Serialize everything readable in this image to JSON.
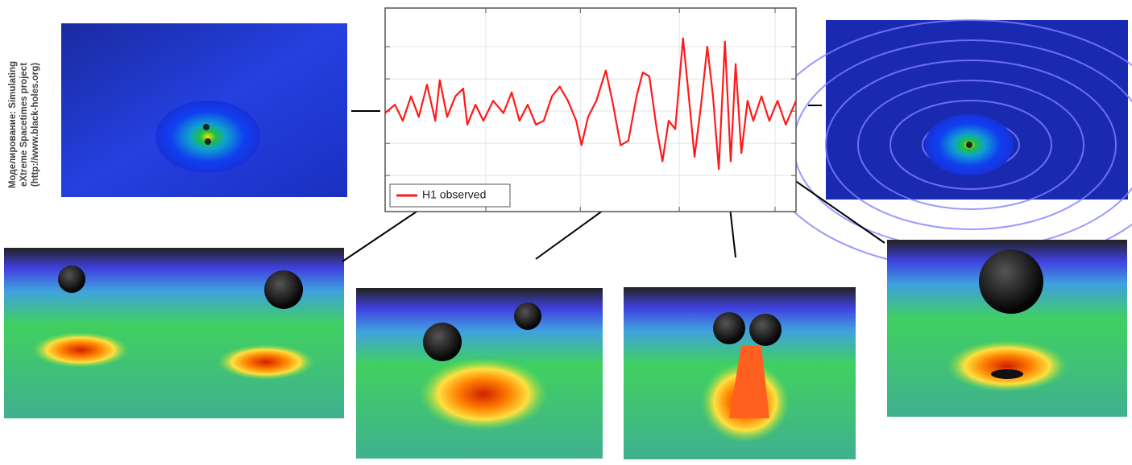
{
  "credit": [
    "Моделирование: Simulating",
    "eXtreme Spacetimes project",
    "(http://www.black-holes.org)"
  ],
  "chart_data": {
    "type": "line",
    "x": [
      0,
      0.024,
      0.043,
      0.063,
      0.082,
      0.102,
      0.122,
      0.133,
      0.151,
      0.171,
      0.19,
      0.2,
      0.22,
      0.239,
      0.263,
      0.288,
      0.308,
      0.327,
      0.347,
      0.367,
      0.386,
      0.406,
      0.425,
      0.445,
      0.465,
      0.478,
      0.494,
      0.514,
      0.537,
      0.553,
      0.573,
      0.592,
      0.612,
      0.627,
      0.643,
      0.661,
      0.675,
      0.69,
      0.706,
      0.725,
      0.739,
      0.753,
      0.769,
      0.784,
      0.798,
      0.812,
      0.827,
      0.841,
      0.853,
      0.867,
      0.882,
      0.896,
      0.916,
      0.935,
      0.955,
      0.975,
      1
    ],
    "series": [
      {
        "name": "H1 observed",
        "color": "#ff1a1a",
        "values": [
          -0.03,
          0.1,
          -0.15,
          0.23,
          -0.09,
          0.41,
          -0.15,
          0.48,
          -0.09,
          0.23,
          0.35,
          -0.21,
          0.1,
          -0.15,
          0.16,
          -0.03,
          0.29,
          -0.15,
          0.1,
          -0.21,
          -0.15,
          0.23,
          0.38,
          0.16,
          -0.15,
          -0.53,
          -0.09,
          0.16,
          0.63,
          0.16,
          -0.53,
          -0.46,
          0.23,
          0.6,
          0.54,
          -0.28,
          -0.78,
          -0.15,
          -0.28,
          1.13,
          0.23,
          -0.71,
          0.1,
          1,
          0.23,
          -0.9,
          1.08,
          -0.78,
          0.73,
          -0.65,
          0.16,
          -0.15,
          0.23,
          -0.15,
          0.16,
          -0.21,
          0.16
        ]
      }
    ],
    "xlim": [
      0,
      1
    ],
    "ylim": [
      -1.56,
      1.6
    ],
    "xticks": [
      0.245,
      0.475,
      0.716,
      0.949
    ],
    "yticks": [
      1,
      0.5,
      0,
      -0.5,
      -1
    ],
    "grid": true,
    "legend": "lower left"
  }
}
